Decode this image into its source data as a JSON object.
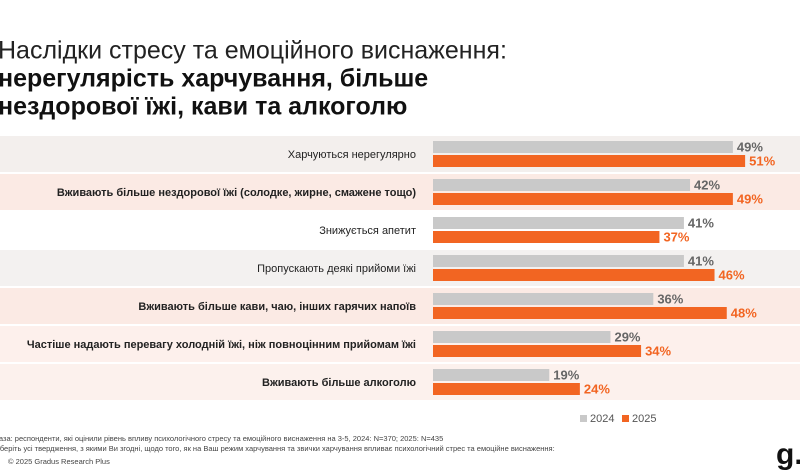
{
  "chart_data": {
    "type": "bar",
    "orientation": "horizontal",
    "title": "Наслідки стресу та емоційного виснаження:",
    "subtitle_lines": [
      "нерегулярість харчування, більше",
      "нездорової їжі, кави та алкоголю"
    ],
    "categories": [
      "Харчуються нерегулярно",
      "Вживають більше нездорової їжі (солодке, жирне, смажене тощо)",
      "Знижується апетит",
      "Пропускають деякі прийоми їжі",
      "Вживають більше кави, чаю, інших гарячих напоїв",
      "Частіше надають перевагу холодній їжі, ніж повноцінним прийомам їжі",
      "Вживають більше алкоголю"
    ],
    "series": [
      {
        "name": "2024",
        "color": "#c9c9c9",
        "values": [
          49,
          42,
          41,
          41,
          36,
          29,
          19
        ],
        "value_labels": [
          "49%",
          "42%",
          "41%",
          "41%",
          "36%",
          "29%",
          "19%"
        ]
      },
      {
        "name": "2025",
        "color": "#f26522",
        "values": [
          51,
          49,
          37,
          46,
          48,
          34,
          24
        ],
        "value_labels": [
          "51%",
          "49%",
          "37%",
          "46%",
          "48%",
          "34%",
          "24%"
        ]
      }
    ],
    "notes": [
      "База: респонденти, які оцінили рівень впливу психологічного стресу та емоційного виснаження на 3-5, 2024: N=370; 2025: N=435",
      "Оберіть усі твердження, з якими Ви згодні, щодо того, як на Ваш режим харчування та звички харчування впливає психологічний стрес та емоційне виснаження:"
    ],
    "copyright": "© 2025 Gradus Research Plus",
    "logo": "g."
  }
}
